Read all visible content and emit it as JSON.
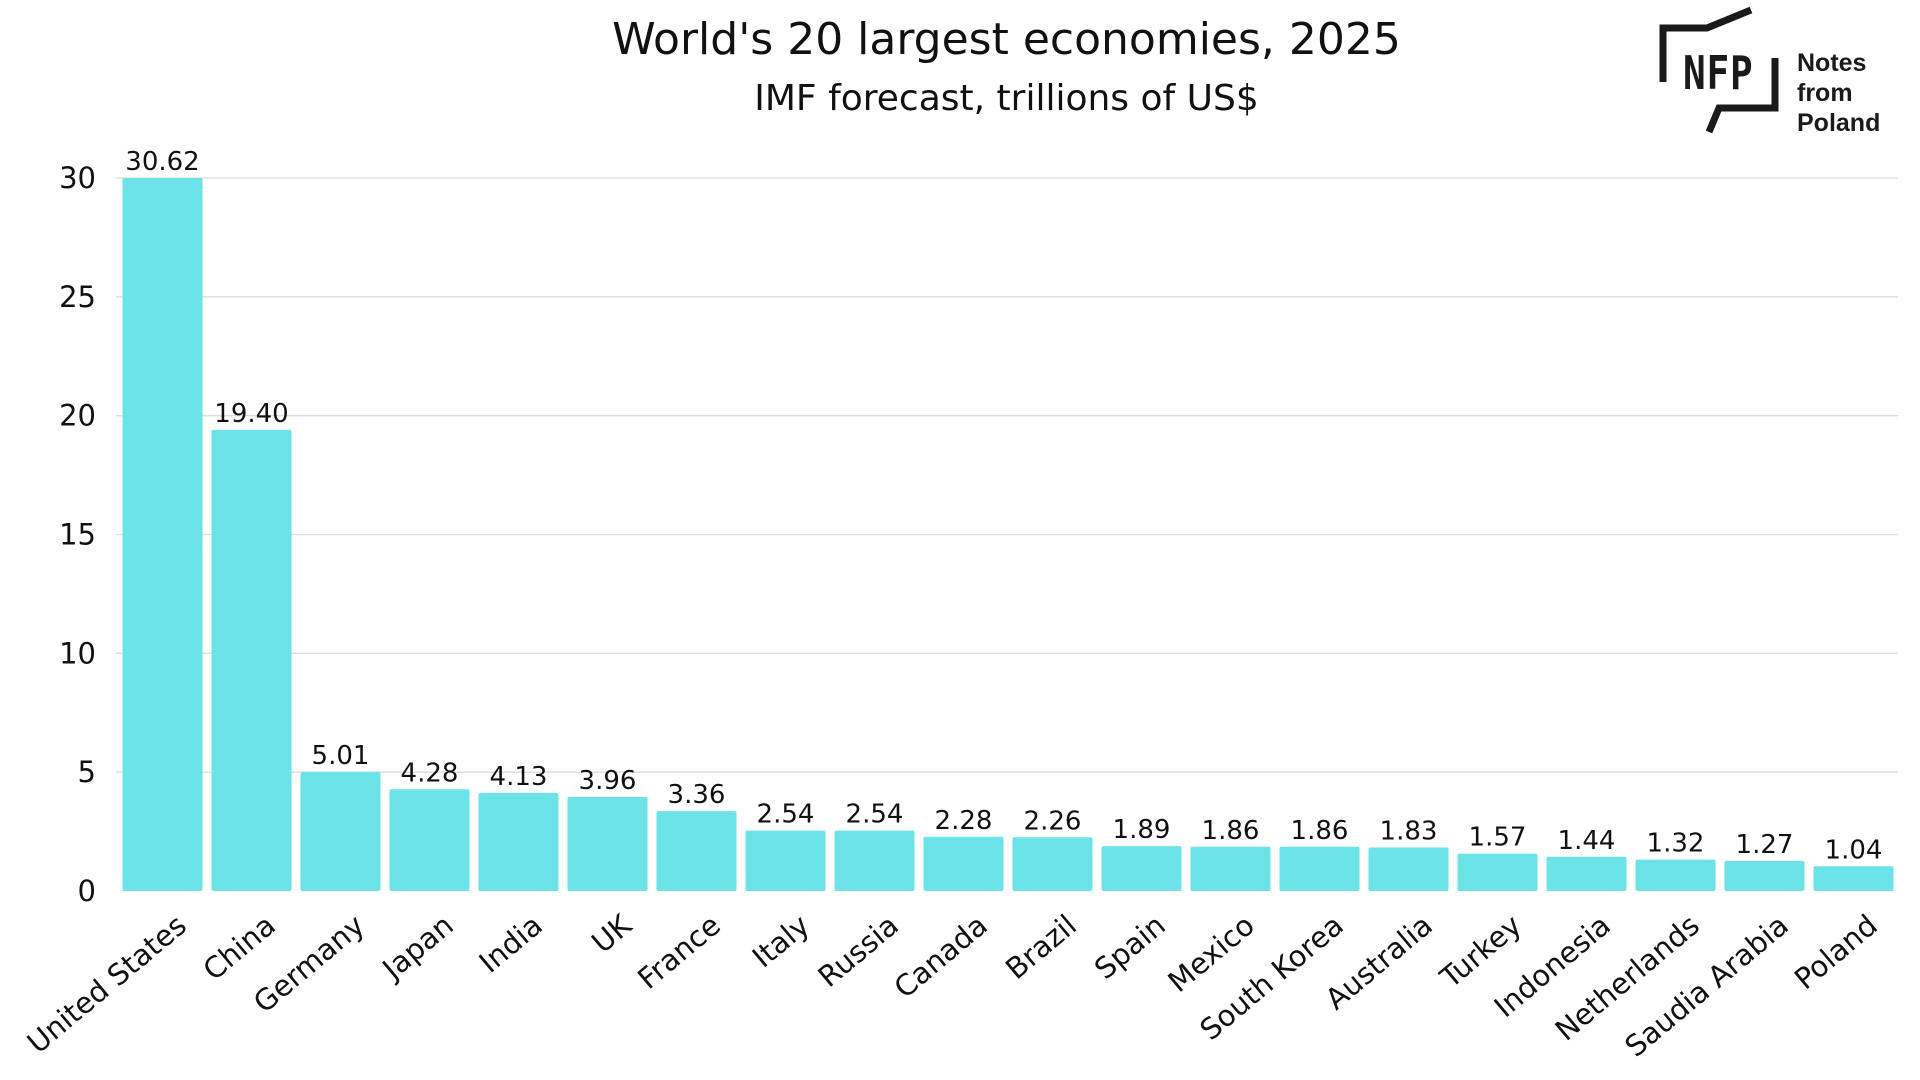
{
  "chart_data": {
    "type": "bar",
    "title": "World's 20 largest economies, 2025",
    "subtitle": "IMF forecast, trillions of US$",
    "categories": [
      "United States",
      "China",
      "Germany",
      "Japan",
      "India",
      "UK",
      "France",
      "Italy",
      "Russia",
      "Canada",
      "Brazil",
      "Spain",
      "Mexico",
      "South Korea",
      "Australia",
      "Turkey",
      "Indonesia",
      "Netherlands",
      "Saudia Arabia",
      "Poland"
    ],
    "values": [
      30.62,
      19.4,
      5.01,
      4.28,
      4.13,
      3.96,
      3.36,
      2.54,
      2.54,
      2.28,
      2.26,
      1.89,
      1.86,
      1.86,
      1.83,
      1.57,
      1.44,
      1.32,
      1.27,
      1.04
    ],
    "value_labels": [
      "30.62",
      "19.40",
      "5.01",
      "4.28",
      "4.13",
      "3.96",
      "3.36",
      "2.54",
      "2.54",
      "2.28",
      "2.26",
      "1.89",
      "1.86",
      "1.86",
      "1.83",
      "1.57",
      "1.44",
      "1.32",
      "1.27",
      "1.04"
    ],
    "yticks": [
      "0",
      "5",
      "10",
      "15",
      "20",
      "25",
      "30"
    ],
    "ylim": [
      0,
      30
    ],
    "clipped_at_axis_max": true,
    "grid": true,
    "legend": "none",
    "colors": {
      "bar": "#6ce3e6",
      "grid": "#dddddd",
      "text": "#111111"
    }
  },
  "logo": {
    "mark": "NFP",
    "name_line1": "Notes from",
    "name_line2": "Poland",
    "icon": "nfp-bracket-logo-icon"
  }
}
